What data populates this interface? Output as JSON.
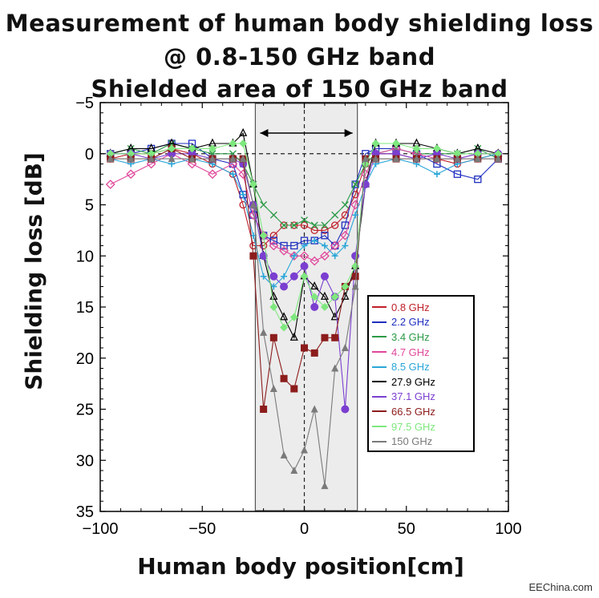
{
  "titles": {
    "line1": "Measurement of human body shielding loss",
    "line2": "@ 0.8-150 GHz band",
    "line3": "Shielded area of 150 GHz band"
  },
  "watermark": "EEChina.com",
  "chart_data": {
    "type": "line",
    "xlabel": "Human body position[cm]",
    "ylabel": "Shielding loss [dB]",
    "xlim": [
      -100,
      100
    ],
    "ylim": [
      -5,
      35
    ],
    "y_inverted": true,
    "xticks": [
      -100,
      -50,
      0,
      50,
      100
    ],
    "yticks": [
      -5,
      0,
      5,
      10,
      15,
      20,
      25,
      30,
      35
    ],
    "legend_position": "right",
    "shaded_region": [
      -24,
      26
    ],
    "series": [
      {
        "name": "0.8 GHz",
        "color": "#c0202a",
        "marker": "circle-open",
        "x": [
          -95,
          -85,
          -75,
          -65,
          -55,
          -45,
          -35,
          -30,
          -25,
          -20,
          -15,
          -10,
          -5,
          0,
          5,
          10,
          15,
          20,
          25,
          30,
          35,
          45,
          55,
          65,
          75,
          85,
          95
        ],
        "y": [
          0.5,
          0,
          0,
          -0.5,
          0,
          1,
          2,
          5,
          9,
          9,
          8,
          7,
          7,
          7,
          7.5,
          7.5,
          7,
          6,
          4,
          1,
          0,
          0,
          0.5,
          0.5,
          1,
          0.5,
          0
        ]
      },
      {
        "name": "2.2 GHz",
        "color": "#1f2fbf",
        "marker": "square-open",
        "x": [
          -95,
          -85,
          -75,
          -65,
          -55,
          -45,
          -35,
          -30,
          -25,
          -20,
          -15,
          -10,
          -5,
          0,
          5,
          10,
          15,
          20,
          25,
          30,
          35,
          45,
          55,
          65,
          75,
          85,
          95
        ],
        "y": [
          0,
          0,
          -0.5,
          -1,
          -1,
          0.5,
          1,
          4,
          6,
          8,
          8.5,
          9,
          9,
          8.5,
          8.5,
          8,
          9,
          7,
          3,
          0,
          -0.5,
          -0.5,
          0,
          1,
          2,
          2.5,
          0.5
        ]
      },
      {
        "name": "3.4 GHz",
        "color": "#2b9a46",
        "marker": "x",
        "x": [
          -95,
          -85,
          -75,
          -65,
          -55,
          -45,
          -35,
          -30,
          -25,
          -20,
          -15,
          -10,
          -5,
          0,
          5,
          10,
          15,
          20,
          25,
          30,
          35,
          45,
          55,
          65,
          75,
          85,
          95
        ],
        "y": [
          0,
          -0.5,
          0,
          -1,
          -0.5,
          0,
          0,
          1,
          3,
          5,
          6,
          7,
          7,
          6.5,
          7,
          7,
          6,
          5,
          3,
          1,
          0,
          -0.5,
          0,
          0,
          0,
          -0.5,
          0.5
        ]
      },
      {
        "name": "4.7 GHz",
        "color": "#e0479b",
        "marker": "diamond-open",
        "x": [
          -95,
          -85,
          -75,
          -65,
          -55,
          -45,
          -35,
          -30,
          -25,
          -20,
          -15,
          -10,
          -5,
          0,
          5,
          10,
          15,
          20,
          25,
          30,
          35,
          45,
          55,
          65,
          75,
          85,
          95
        ],
        "y": [
          3,
          2,
          1,
          0,
          1,
          2,
          1,
          2,
          6,
          8,
          9,
          9.5,
          10,
          10,
          10.5,
          10,
          9,
          8,
          5,
          2,
          0,
          -0.5,
          0,
          0.5,
          0.5,
          0,
          0
        ]
      },
      {
        "name": "8.5 GHz",
        "color": "#2aa6d8",
        "marker": "plus",
        "x": [
          -95,
          -85,
          -75,
          -65,
          -55,
          -45,
          -35,
          -30,
          -25,
          -20,
          -15,
          -10,
          -5,
          0,
          5,
          10,
          15,
          20,
          25,
          30,
          35,
          45,
          55,
          65,
          75,
          85,
          95
        ],
        "y": [
          0.5,
          1,
          0.5,
          1,
          0.5,
          1,
          2,
          4,
          8,
          12,
          13,
          12,
          10,
          9,
          8.5,
          9,
          10,
          9,
          6,
          3,
          1,
          0.5,
          1,
          2,
          1,
          0.5,
          0
        ]
      },
      {
        "name": "27.9 GHz",
        "color": "#000000",
        "marker": "triangle-open",
        "x": [
          -95,
          -85,
          -75,
          -65,
          -55,
          -45,
          -35,
          -30,
          -25,
          -20,
          -15,
          -10,
          -5,
          0,
          5,
          10,
          15,
          20,
          25,
          30,
          35,
          45,
          55,
          65,
          75,
          85,
          95
        ],
        "y": [
          0,
          -0.5,
          -0.5,
          -1,
          -0.5,
          -1,
          -1,
          -2,
          3,
          10,
          14,
          16,
          18,
          12,
          13,
          14,
          16,
          14,
          11,
          3,
          -1,
          -1,
          -1,
          -0.5,
          0,
          -0.5,
          0
        ]
      },
      {
        "name": "37.1 GHz",
        "color": "#7b3fd0",
        "marker": "circle-filled",
        "x": [
          -95,
          -85,
          -75,
          -65,
          -55,
          -45,
          -35,
          -30,
          -25,
          -20,
          -15,
          -10,
          -5,
          0,
          5,
          10,
          15,
          20,
          25,
          30,
          35,
          45,
          55,
          65,
          75,
          85,
          95
        ],
        "y": [
          0,
          0,
          0.5,
          0,
          0,
          0.5,
          0.5,
          1,
          5,
          10,
          12,
          13,
          12,
          11,
          15,
          12,
          14,
          25,
          10,
          3,
          0,
          0,
          0.5,
          0,
          0.5,
          0,
          0
        ]
      },
      {
        "name": "66.5 GHz",
        "color": "#8c1c1c",
        "marker": "square-filled",
        "x": [
          -95,
          -85,
          -75,
          -65,
          -55,
          -45,
          -35,
          -30,
          -25,
          -20,
          -15,
          -10,
          -5,
          0,
          5,
          10,
          15,
          20,
          25,
          30,
          35,
          45,
          55,
          65,
          75,
          85,
          95
        ],
        "y": [
          0.5,
          0.5,
          0.5,
          -0.5,
          0.5,
          0.5,
          0.5,
          0.5,
          10,
          25,
          18,
          22,
          23,
          19,
          19.5,
          18,
          18,
          13,
          12,
          0.5,
          0.5,
          0.5,
          0.5,
          0.5,
          0.5,
          0.5,
          0.5
        ]
      },
      {
        "name": "97.5 GHz",
        "color": "#7ee87e",
        "marker": "diamond-filled",
        "x": [
          -95,
          -85,
          -75,
          -65,
          -55,
          -45,
          -35,
          -30,
          -25,
          -20,
          -15,
          -10,
          -5,
          0,
          5,
          10,
          15,
          20,
          25,
          30,
          35,
          45,
          55,
          65,
          75,
          85,
          95
        ],
        "y": [
          0,
          0,
          0,
          -0.5,
          -0.5,
          -0.5,
          -1,
          -1,
          3,
          8,
          15,
          17,
          16,
          12,
          14,
          15,
          14,
          13,
          11,
          1,
          -1,
          -1,
          -0.5,
          -0.5,
          0,
          0,
          0
        ]
      },
      {
        "name": "150 GHz",
        "color": "#7a7a7a",
        "marker": "triangle-filled",
        "x": [
          -95,
          -85,
          -75,
          -65,
          -55,
          -45,
          -35,
          -30,
          -25,
          -20,
          -15,
          -10,
          -5,
          0,
          5,
          10,
          15,
          20,
          25,
          30,
          35,
          45,
          55,
          65,
          75,
          85,
          95
        ],
        "y": [
          0.5,
          0.5,
          0.5,
          0.5,
          0.5,
          0.5,
          0.5,
          0.5,
          5,
          17.5,
          23,
          29.5,
          31,
          29,
          25,
          32.5,
          21,
          19,
          13,
          0.5,
          0.5,
          0.5,
          0.5,
          0.5,
          0.5,
          0.5,
          0.5
        ]
      }
    ]
  }
}
